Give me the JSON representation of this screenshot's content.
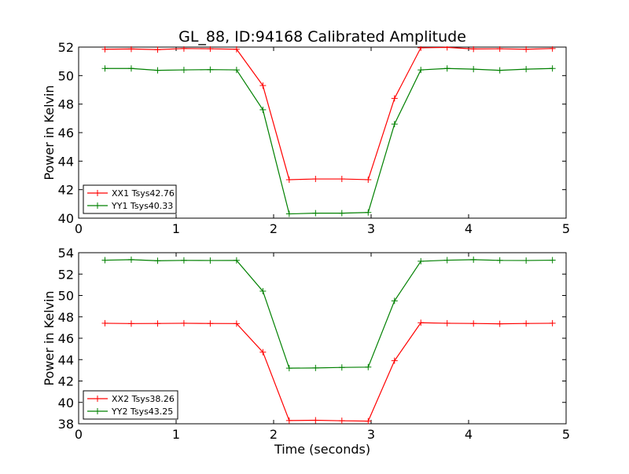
{
  "figure": {
    "title": "GL_88, ID:94168 Calibrated Amplitude"
  },
  "chart_data": [
    {
      "type": "line",
      "title": "GL_88, ID:94168 Calibrated Amplitude",
      "xlabel": "",
      "ylabel": "Power in Kelvin",
      "xlim": [
        0,
        5
      ],
      "ylim": [
        40,
        52
      ],
      "xticks": [
        0,
        1,
        2,
        3,
        4,
        5
      ],
      "yticks": [
        40,
        42,
        44,
        46,
        48,
        50,
        52
      ],
      "grid": false,
      "legend_position": "lower-left",
      "x": [
        0.27,
        0.54,
        0.81,
        1.08,
        1.35,
        1.62,
        1.89,
        2.16,
        2.43,
        2.7,
        2.97,
        3.24,
        3.51,
        3.78,
        4.05,
        4.32,
        4.59,
        4.86
      ],
      "series": [
        {
          "name": "XX1 Tsys42.76",
          "color": "#ff0000",
          "values": [
            51.85,
            51.87,
            51.82,
            51.9,
            51.88,
            51.85,
            49.3,
            42.7,
            42.75,
            42.75,
            42.7,
            48.4,
            51.95,
            51.98,
            51.87,
            51.88,
            51.85,
            51.9
          ]
        },
        {
          "name": "YY1 Tsys40.33",
          "color": "#008000",
          "values": [
            50.5,
            50.5,
            50.37,
            50.4,
            50.42,
            50.4,
            47.6,
            40.3,
            40.35,
            40.35,
            40.4,
            46.6,
            50.4,
            50.5,
            50.45,
            50.37,
            50.45,
            50.5
          ]
        }
      ]
    },
    {
      "type": "line",
      "title": "",
      "xlabel": "Time (seconds)",
      "ylabel": "Power in Kelvin",
      "xlim": [
        0,
        5
      ],
      "ylim": [
        38,
        54
      ],
      "xticks": [
        0,
        1,
        2,
        3,
        4,
        5
      ],
      "yticks": [
        38,
        40,
        42,
        44,
        46,
        48,
        50,
        52,
        54
      ],
      "grid": false,
      "legend_position": "lower-left",
      "x": [
        0.27,
        0.54,
        0.81,
        1.08,
        1.35,
        1.62,
        1.89,
        2.16,
        2.43,
        2.7,
        2.97,
        3.24,
        3.51,
        3.78,
        4.05,
        4.32,
        4.59,
        4.86
      ],
      "series": [
        {
          "name": "XX2 Tsys38.26",
          "color": "#ff0000",
          "values": [
            47.4,
            47.37,
            47.38,
            47.4,
            47.38,
            47.37,
            44.7,
            38.3,
            38.33,
            38.28,
            38.25,
            43.9,
            47.45,
            47.4,
            47.38,
            47.35,
            47.38,
            47.4
          ]
        },
        {
          "name": "YY2 Tsys43.25",
          "color": "#008000",
          "values": [
            53.3,
            53.35,
            53.25,
            53.28,
            53.27,
            53.28,
            50.4,
            43.2,
            43.22,
            43.27,
            43.3,
            49.5,
            53.2,
            53.3,
            53.35,
            53.28,
            53.27,
            53.3
          ]
        }
      ]
    }
  ]
}
